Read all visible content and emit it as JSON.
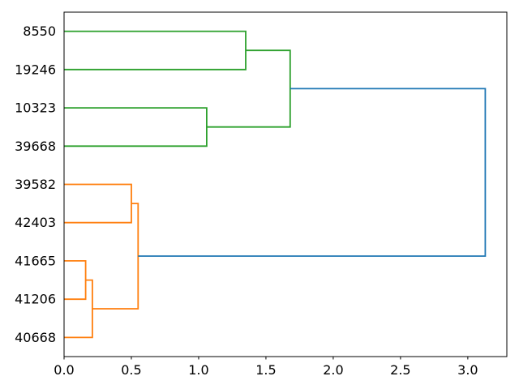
{
  "chart_data": {
    "type": "dendrogram",
    "orientation": "horizontal-left-labels",
    "title": "",
    "xlabel": "",
    "ylabel": "",
    "leaves": [
      "8550",
      "19246",
      "10323",
      "39668",
      "39582",
      "42403",
      "41665",
      "41206",
      "40668"
    ],
    "links": [
      {
        "id": "A",
        "children": [
          "8550",
          "19246"
        ],
        "distance": 1.35,
        "color_key": "green"
      },
      {
        "id": "B",
        "children": [
          "10323",
          "39668"
        ],
        "distance": 1.06,
        "color_key": "green"
      },
      {
        "id": "C",
        "children": [
          "A",
          "B"
        ],
        "distance": 1.68,
        "color_key": "green"
      },
      {
        "id": "D",
        "children": [
          "39582",
          "42403"
        ],
        "distance": 0.5,
        "color_key": "orange"
      },
      {
        "id": "E",
        "children": [
          "41665",
          "41206"
        ],
        "distance": 0.16,
        "color_key": "orange"
      },
      {
        "id": "F",
        "children": [
          "E",
          "40668"
        ],
        "distance": 0.21,
        "color_key": "orange"
      },
      {
        "id": "G",
        "children": [
          "D",
          "F"
        ],
        "distance": 0.55,
        "color_key": "orange"
      },
      {
        "id": "H",
        "children": [
          "C",
          "G"
        ],
        "distance": 3.13,
        "color_key": "blue"
      }
    ],
    "x_axis": {
      "tick_labels": [
        "0.0",
        "0.5",
        "1.0",
        "1.5",
        "2.0",
        "2.5",
        "3.0"
      ],
      "tick_values": [
        0,
        0.5,
        1.0,
        1.5,
        2.0,
        2.5,
        3.0
      ],
      "xlim": [
        0,
        3.29
      ],
      "grid": false
    },
    "legend": null,
    "colors": {
      "green": "#2ca02c",
      "orange": "#ff7f0e",
      "blue": "#1f77b4",
      "axis": "#000000",
      "text": "#000000"
    }
  }
}
